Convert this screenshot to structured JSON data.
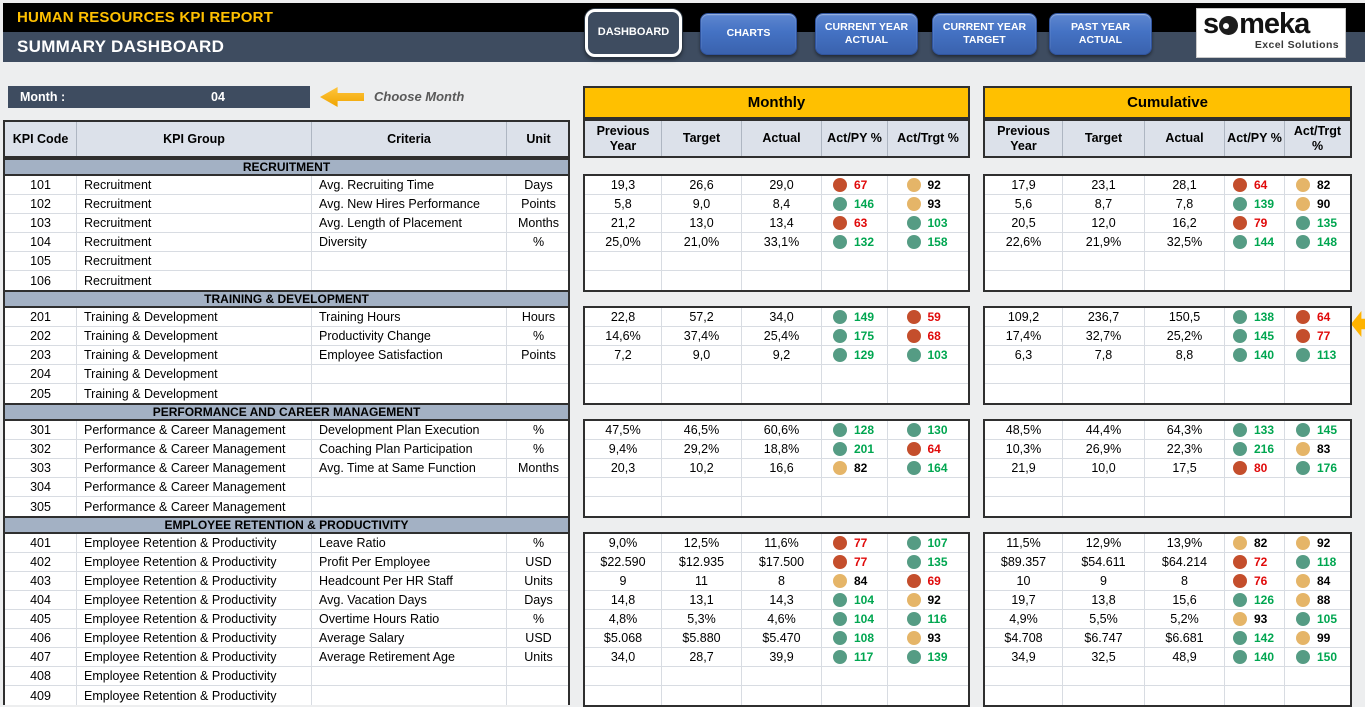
{
  "header": {
    "report_title": "HUMAN RESOURCES KPI REPORT",
    "page_title": "SUMMARY DASHBOARD"
  },
  "nav": [
    {
      "label": "DASHBOARD",
      "active": true
    },
    {
      "label": "CHARTS",
      "active": false
    },
    {
      "label": "CURRENT YEAR ACTUAL",
      "active": false
    },
    {
      "label": "CURRENT YEAR TARGET",
      "active": false
    },
    {
      "label": "PAST YEAR ACTUAL",
      "active": false
    }
  ],
  "logo": {
    "brand_prefix": "s",
    "brand_suffix": "meka",
    "tagline": "Excel Solutions"
  },
  "month_selector": {
    "label": "Month :",
    "value": "04",
    "hint": "Choose Month"
  },
  "columns": {
    "left": [
      "KPI Code",
      "KPI Group",
      "Criteria",
      "Unit"
    ],
    "groups": [
      "Monthly",
      "Cumulative"
    ],
    "values": [
      "Previous Year",
      "Target",
      "Actual",
      "Act/PY %",
      "Act/Trgt %"
    ]
  },
  "colors": {
    "gold": "#FFC000",
    "slate": "#3E4C60",
    "section_band": "#A3B1C4",
    "subheader": "#DCE1EA",
    "dot_green": "#559C84",
    "dot_red": "#C44E2C",
    "dot_amber": "#E5B568",
    "value_green": "#00A650",
    "value_red": "#E00A0A"
  },
  "sections": [
    {
      "title": "RECRUITMENT",
      "rows": [
        {
          "code": "101",
          "group": "Recruitment",
          "criteria": "Avg. Recruiting Time",
          "unit": "Days",
          "monthly": [
            "19,3",
            "26,6",
            "29,0",
            [
              "red",
              "67"
            ],
            [
              "amber",
              "92"
            ]
          ],
          "cumulative": [
            "17,9",
            "23,1",
            "28,1",
            [
              "red",
              "64"
            ],
            [
              "amber",
              "82"
            ]
          ]
        },
        {
          "code": "102",
          "group": "Recruitment",
          "criteria": "Avg. New Hires Performance",
          "unit": "Points",
          "monthly": [
            "5,8",
            "9,0",
            "8,4",
            [
              "green",
              "146"
            ],
            [
              "amber",
              "93"
            ]
          ],
          "cumulative": [
            "5,6",
            "8,7",
            "7,8",
            [
              "green",
              "139"
            ],
            [
              "amber",
              "90"
            ]
          ]
        },
        {
          "code": "103",
          "group": "Recruitment",
          "criteria": "Avg. Length of Placement",
          "unit": "Months",
          "monthly": [
            "21,2",
            "13,0",
            "13,4",
            [
              "red",
              "63"
            ],
            [
              "green",
              "103"
            ]
          ],
          "cumulative": [
            "20,5",
            "12,0",
            "16,2",
            [
              "red",
              "79"
            ],
            [
              "green",
              "135"
            ]
          ]
        },
        {
          "code": "104",
          "group": "Recruitment",
          "criteria": "Diversity",
          "unit": "%",
          "monthly": [
            "25,0%",
            "21,0%",
            "33,1%",
            [
              "green",
              "132"
            ],
            [
              "green",
              "158"
            ]
          ],
          "cumulative": [
            "22,6%",
            "21,9%",
            "32,5%",
            [
              "green",
              "144"
            ],
            [
              "green",
              "148"
            ]
          ]
        },
        {
          "code": "105",
          "group": "Recruitment",
          "criteria": "",
          "unit": "",
          "monthly": null,
          "cumulative": null
        },
        {
          "code": "106",
          "group": "Recruitment",
          "criteria": "",
          "unit": "",
          "monthly": null,
          "cumulative": null
        }
      ]
    },
    {
      "title": "TRAINING & DEVELOPMENT",
      "rows": [
        {
          "code": "201",
          "group": "Training & Development",
          "criteria": "Training Hours",
          "unit": "Hours",
          "monthly": [
            "22,8",
            "57,2",
            "34,0",
            [
              "green",
              "149"
            ],
            [
              "red",
              "59"
            ]
          ],
          "cumulative": [
            "109,2",
            "236,7",
            "150,5",
            [
              "green",
              "138"
            ],
            [
              "red",
              "64"
            ]
          ]
        },
        {
          "code": "202",
          "group": "Training & Development",
          "criteria": "Productivity Change",
          "unit": "%",
          "monthly": [
            "14,6%",
            "37,4%",
            "25,4%",
            [
              "green",
              "175"
            ],
            [
              "red",
              "68"
            ]
          ],
          "cumulative": [
            "17,4%",
            "32,7%",
            "25,2%",
            [
              "green",
              "145"
            ],
            [
              "red",
              "77"
            ]
          ]
        },
        {
          "code": "203",
          "group": "Training & Development",
          "criteria": "Employee Satisfaction",
          "unit": "Points",
          "monthly": [
            "7,2",
            "9,0",
            "9,2",
            [
              "green",
              "129"
            ],
            [
              "green",
              "103"
            ]
          ],
          "cumulative": [
            "6,3",
            "7,8",
            "8,8",
            [
              "green",
              "140"
            ],
            [
              "green",
              "113"
            ]
          ]
        },
        {
          "code": "204",
          "group": "Training & Development",
          "criteria": "",
          "unit": "",
          "monthly": null,
          "cumulative": null
        },
        {
          "code": "205",
          "group": "Training & Development",
          "criteria": "",
          "unit": "",
          "monthly": null,
          "cumulative": null
        }
      ]
    },
    {
      "title": "PERFORMANCE AND CAREER MANAGEMENT",
      "rows": [
        {
          "code": "301",
          "group": "Performance & Career Management",
          "criteria": "Development Plan Execution",
          "unit": "%",
          "monthly": [
            "47,5%",
            "46,5%",
            "60,6%",
            [
              "green",
              "128"
            ],
            [
              "green",
              "130"
            ]
          ],
          "cumulative": [
            "48,5%",
            "44,4%",
            "64,3%",
            [
              "green",
              "133"
            ],
            [
              "green",
              "145"
            ]
          ]
        },
        {
          "code": "302",
          "group": "Performance & Career Management",
          "criteria": "Coaching Plan Participation",
          "unit": "%",
          "monthly": [
            "9,4%",
            "29,2%",
            "18,8%",
            [
              "green",
              "201"
            ],
            [
              "red",
              "64"
            ]
          ],
          "cumulative": [
            "10,3%",
            "26,9%",
            "22,3%",
            [
              "green",
              "216"
            ],
            [
              "amber",
              "83"
            ]
          ]
        },
        {
          "code": "303",
          "group": "Performance & Career Management",
          "criteria": "Avg. Time at Same Function",
          "unit": "Months",
          "monthly": [
            "20,3",
            "10,2",
            "16,6",
            [
              "amber",
              "82"
            ],
            [
              "green",
              "164"
            ]
          ],
          "cumulative": [
            "21,9",
            "10,0",
            "17,5",
            [
              "red",
              "80"
            ],
            [
              "green",
              "176"
            ]
          ]
        },
        {
          "code": "304",
          "group": "Performance & Career Management",
          "criteria": "",
          "unit": "",
          "monthly": null,
          "cumulative": null
        },
        {
          "code": "305",
          "group": "Performance & Career Management",
          "criteria": "",
          "unit": "",
          "monthly": null,
          "cumulative": null
        }
      ]
    },
    {
      "title": "EMPLOYEE RETENTION & PRODUCTIVITY",
      "rows": [
        {
          "code": "401",
          "group": "Employee Retention & Productivity",
          "criteria": "Leave Ratio",
          "unit": "%",
          "monthly": [
            "9,0%",
            "12,5%",
            "11,6%",
            [
              "red",
              "77"
            ],
            [
              "green",
              "107"
            ]
          ],
          "cumulative": [
            "11,5%",
            "12,9%",
            "13,9%",
            [
              "amber",
              "82"
            ],
            [
              "amber",
              "92"
            ]
          ]
        },
        {
          "code": "402",
          "group": "Employee Retention & Productivity",
          "criteria": "Profit Per Employee",
          "unit": "USD",
          "monthly": [
            "$22.590",
            "$12.935",
            "$17.500",
            [
              "red",
              "77"
            ],
            [
              "green",
              "135"
            ]
          ],
          "cumulative": [
            "$89.357",
            "$54.611",
            "$64.214",
            [
              "red",
              "72"
            ],
            [
              "green",
              "118"
            ]
          ]
        },
        {
          "code": "403",
          "group": "Employee Retention & Productivity",
          "criteria": "Headcount Per HR Staff",
          "unit": "Units",
          "monthly": [
            "9",
            "11",
            "8",
            [
              "amber",
              "84"
            ],
            [
              "red",
              "69"
            ]
          ],
          "cumulative": [
            "10",
            "9",
            "8",
            [
              "red",
              "76"
            ],
            [
              "amber",
              "84"
            ]
          ]
        },
        {
          "code": "404",
          "group": "Employee Retention & Productivity",
          "criteria": "Avg. Vacation Days",
          "unit": "Days",
          "monthly": [
            "14,8",
            "13,1",
            "14,3",
            [
              "green",
              "104"
            ],
            [
              "amber",
              "92"
            ]
          ],
          "cumulative": [
            "19,7",
            "13,8",
            "15,6",
            [
              "green",
              "126"
            ],
            [
              "amber",
              "88"
            ]
          ]
        },
        {
          "code": "405",
          "group": "Employee Retention & Productivity",
          "criteria": "Overtime Hours Ratio",
          "unit": "%",
          "monthly": [
            "4,8%",
            "5,3%",
            "4,6%",
            [
              "green",
              "104"
            ],
            [
              "green",
              "116"
            ]
          ],
          "cumulative": [
            "4,9%",
            "5,5%",
            "5,2%",
            [
              "amber",
              "93"
            ],
            [
              "green",
              "105"
            ]
          ]
        },
        {
          "code": "406",
          "group": "Employee Retention & Productivity",
          "criteria": "Average Salary",
          "unit": "USD",
          "monthly": [
            "$5.068",
            "$5.880",
            "$5.470",
            [
              "green",
              "108"
            ],
            [
              "amber",
              "93"
            ]
          ],
          "cumulative": [
            "$4.708",
            "$6.747",
            "$6.681",
            [
              "green",
              "142"
            ],
            [
              "amber",
              "99"
            ]
          ]
        },
        {
          "code": "407",
          "group": "Employee Retention & Productivity",
          "criteria": "Average Retirement Age",
          "unit": "Units",
          "monthly": [
            "34,0",
            "28,7",
            "39,9",
            [
              "green",
              "117"
            ],
            [
              "green",
              "139"
            ]
          ],
          "cumulative": [
            "34,9",
            "32,5",
            "48,9",
            [
              "green",
              "140"
            ],
            [
              "green",
              "150"
            ]
          ]
        },
        {
          "code": "408",
          "group": "Employee Retention & Productivity",
          "criteria": "",
          "unit": "",
          "monthly": null,
          "cumulative": null
        },
        {
          "code": "409",
          "group": "Employee Retention & Productivity",
          "criteria": "",
          "unit": "",
          "monthly": null,
          "cumulative": null
        }
      ]
    }
  ]
}
